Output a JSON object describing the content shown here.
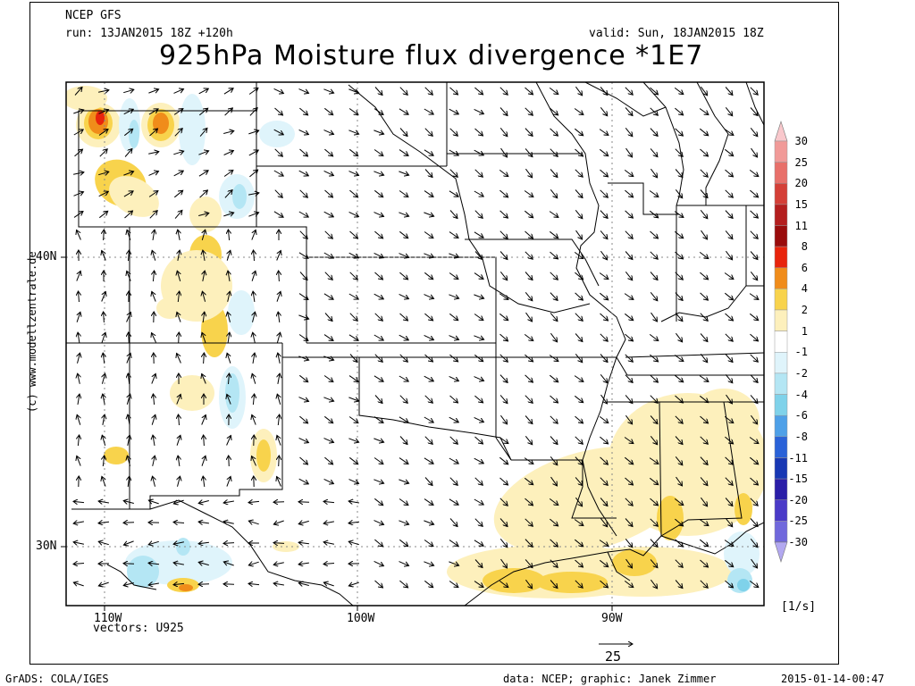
{
  "header": {
    "model": "NCEP GFS",
    "run": "run: 13JAN2015 18Z +120h",
    "valid": "valid: Sun, 18JAN2015 18Z",
    "title": "925hPa Moisture flux divergence *1E7"
  },
  "map": {
    "lon_labels": [
      "110W",
      "100W",
      "90W"
    ],
    "lat_labels": [
      "40N",
      "30N"
    ],
    "vectors_label": "vectors: U925",
    "ref_vector_value": "25",
    "side_credit": "(c) www.modellzentrale.de"
  },
  "colorbar": {
    "labels": [
      "30",
      "25",
      "20",
      "15",
      "11",
      "8",
      "6",
      "4",
      "2",
      "1",
      "-1",
      "-2",
      "-4",
      "-6",
      "-8",
      "-11",
      "-15",
      "-20",
      "-25",
      "-30"
    ],
    "unit": "[1/s]",
    "colors": {
      "above_30": "#f9c8cc",
      "c_25_30": "#f19a98",
      "c_20_25": "#e8706a",
      "c_15_20": "#d43f37",
      "c_11_15": "#b41e1e",
      "c_8_11": "#9a0c0c",
      "c_6_8": "#e8240c",
      "c_4_6": "#f08c1a",
      "c_2_4": "#f8d34c",
      "c_1_2": "#fdf0bc",
      "c_m1_1": "#ffffff",
      "c_m2_m1": "#dff4fb",
      "c_m4_m2": "#b4e6f4",
      "c_m6_m4": "#7fd2ea",
      "c_m8_m6": "#4ea0e8",
      "c_m11_m8": "#2a62d8",
      "c_m15_m11": "#1838b4",
      "c_m20_m15": "#2a1ea8",
      "c_m25_m20": "#4a3ac8",
      "c_m30_m25": "#7068dc",
      "below_m30": "#b2a8f0"
    }
  },
  "footer": {
    "left": "GrADS: COLA/IGES",
    "center": "data: NCEP; graphic: Janek Zimmer",
    "right": "2015-01-14-00:47"
  }
}
